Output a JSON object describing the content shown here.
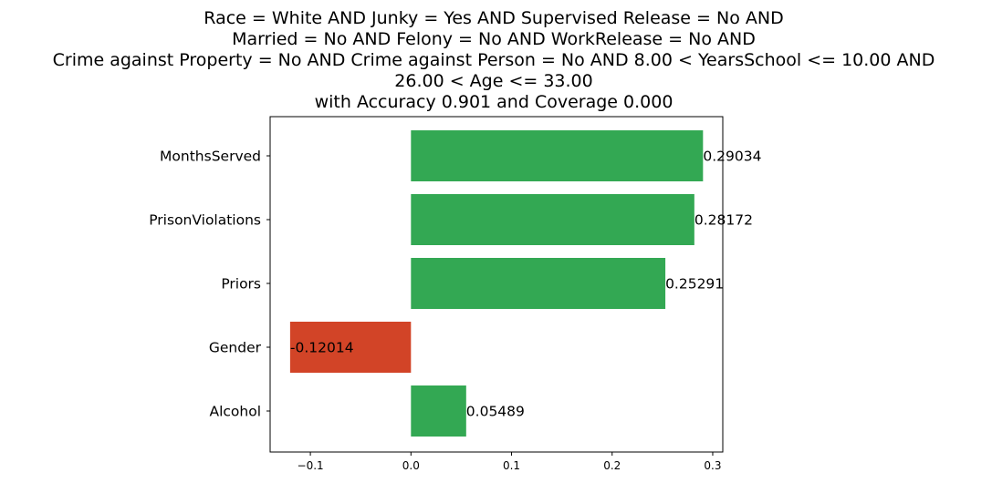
{
  "chart_data": {
    "type": "bar",
    "orientation": "horizontal",
    "title_lines": [
      "Race = White AND Junky = Yes AND Supervised Release = No AND",
      "Married = No AND Felony = No AND WorkRelease = No AND",
      "Crime against Property = No AND Crime against Person = No AND 8.00 < YearsSchool <= 10.00 AND",
      "26.00 < Age <= 33.00",
      "with Accuracy 0.901 and Coverage 0.000"
    ],
    "categories": [
      "MonthsServed",
      "PrisonViolations",
      "Priors",
      "Gender",
      "Alcohol"
    ],
    "values": [
      0.29034,
      0.28172,
      0.25291,
      -0.12014,
      0.05489
    ],
    "value_labels": [
      "0.29034",
      "0.28172",
      "0.25291",
      "-0.12014",
      "0.05489"
    ],
    "xlim": [
      -0.14,
      0.31
    ],
    "xticks": [
      -0.1,
      0.0,
      0.1,
      0.2,
      0.3
    ],
    "xtick_labels": [
      "−0.1",
      "0.0",
      "0.1",
      "0.2",
      "0.3"
    ],
    "grid": false,
    "legend": "none",
    "colors": {
      "positive": "#33a853",
      "negative": "#d24427",
      "axis": "#000000"
    }
  }
}
